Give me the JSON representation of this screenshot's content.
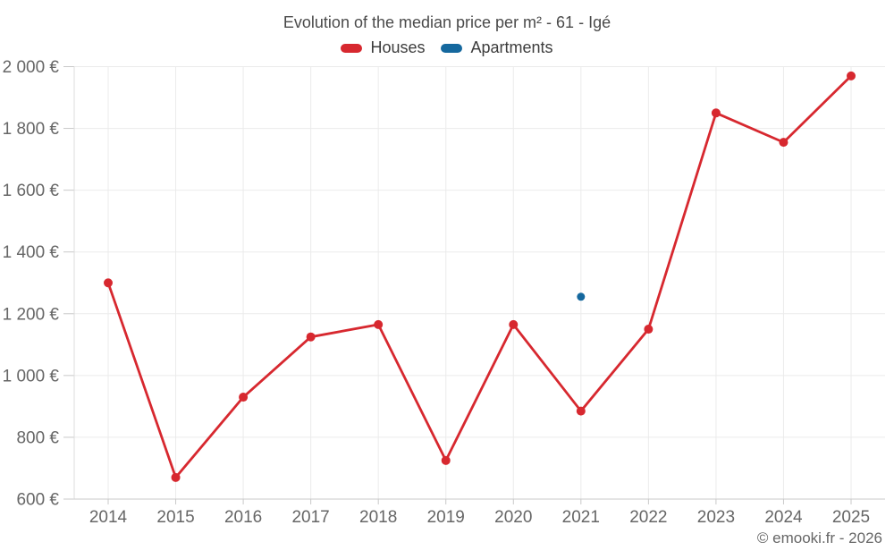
{
  "header": {
    "title": "Evolution of the median price per m² - 61 - Igé"
  },
  "footer": {
    "credit": "© emooki.fr - 2026"
  },
  "colors": {
    "houses": "#d7282f",
    "apartments": "#15689e",
    "grid": "#ebebeb",
    "axis_text": "#666666"
  },
  "chart_data": {
    "type": "line",
    "title": "Evolution of the median price per m² - 61 - Igé",
    "categories": [
      "2014",
      "2015",
      "2016",
      "2017",
      "2018",
      "2019",
      "2020",
      "2021",
      "2022",
      "2023",
      "2024",
      "2025"
    ],
    "series": [
      {
        "name": "Houses",
        "color": "#d7282f",
        "marker_radius": 5,
        "values": [
          1300,
          670,
          930,
          1125,
          1165,
          725,
          1165,
          885,
          1150,
          1850,
          1755,
          1970
        ]
      },
      {
        "name": "Apartments",
        "color": "#15689e",
        "marker_radius": 4.5,
        "values": [
          null,
          null,
          null,
          null,
          null,
          null,
          null,
          1255,
          null,
          null,
          null,
          null
        ]
      }
    ],
    "xlabel": "",
    "ylabel": "",
    "ylim": [
      600,
      2000
    ],
    "ytick_step": 200,
    "ytick_labels": [
      "600 €",
      "800 €",
      "1 000 €",
      "1 200 €",
      "1 400 €",
      "1 600 €",
      "1 800 €",
      "2 000 €"
    ],
    "currency": "€",
    "grid": true,
    "legend_position": "top"
  }
}
